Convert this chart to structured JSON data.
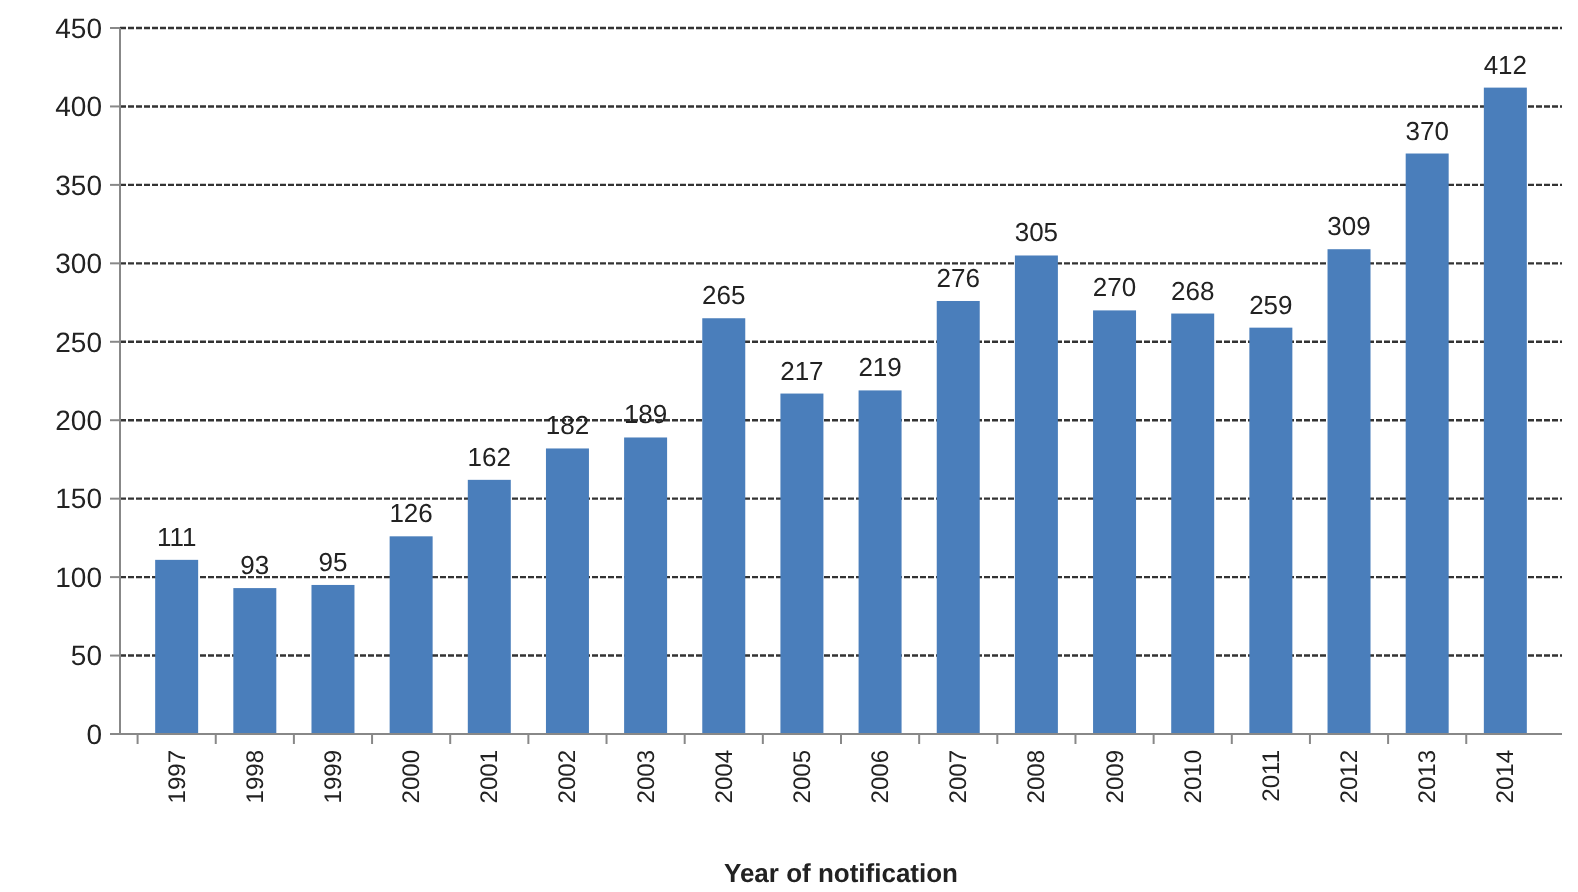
{
  "chart_data": {
    "type": "bar",
    "xlabel": "Year of notification",
    "categories": [
      "1997",
      "1998",
      "1999",
      "2000",
      "2001",
      "2002",
      "2003",
      "2004",
      "2005",
      "2006",
      "2007",
      "2008",
      "2009",
      "2010",
      "2011",
      "2012",
      "2013",
      "2014"
    ],
    "values": [
      111,
      93,
      95,
      126,
      162,
      182,
      189,
      265,
      217,
      219,
      276,
      305,
      270,
      268,
      259,
      309,
      370,
      412
    ],
    "color": "#4a7ebb",
    "ylim": [
      0,
      450
    ],
    "yticks": [
      0,
      50,
      100,
      150,
      200,
      250,
      300,
      350,
      400,
      450
    ],
    "grid": "y",
    "data_labels": true
  }
}
